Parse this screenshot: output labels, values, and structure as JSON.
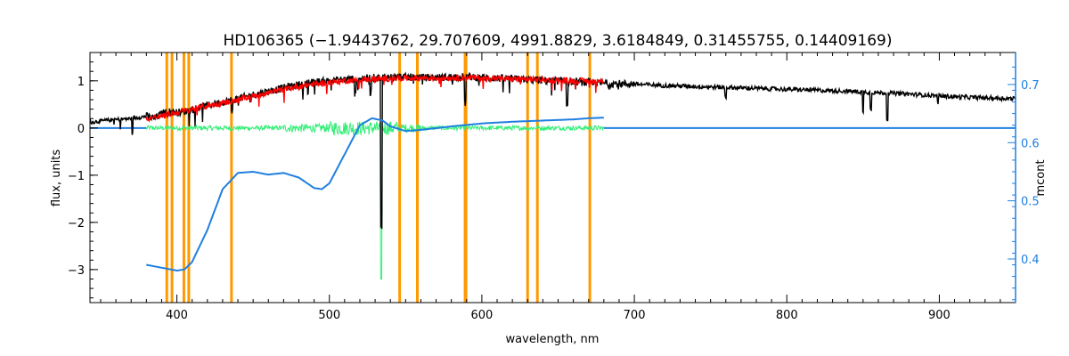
{
  "colors": {
    "frame": "#000000",
    "observed": "#000000",
    "model": "#ff0000",
    "residual": "#33ee77",
    "mcont": "#1f7fe0",
    "marker_lines": "#ff9900"
  },
  "chart_data": {
    "type": "line",
    "title": "HD106365    (−1.9443762, 29.707609, 4991.8829, 3.6184849, 0.31455755, 0.14409169)",
    "xlabel": "wavelength, nm",
    "ylabel": "flux, units",
    "y2label": "mcont",
    "xlim": [
      343,
      950
    ],
    "ylim": [
      -3.7,
      1.6
    ],
    "y2lim": [
      0.325,
      0.755
    ],
    "x_ticks": [
      400,
      500,
      600,
      700,
      800,
      900
    ],
    "y_ticks": [
      -3,
      -2,
      -1,
      0,
      1
    ],
    "y_tick_labels": [
      "−3",
      "−2",
      "−1",
      "0",
      "1"
    ],
    "y2_ticks": [
      0.4,
      0.5,
      0.6,
      0.7
    ],
    "marker_lines": [
      393.4,
      396.8,
      404.6,
      407.8,
      435.8,
      546.1,
      557.7,
      588.99,
      589.59,
      630.0,
      636.4,
      670.8
    ],
    "series": [
      {
        "type": "noisy-spectrum",
        "x": [
          343,
          350,
          360,
          370,
          380,
          385,
          390,
          395,
          400,
          405,
          410,
          420,
          430,
          440,
          450,
          460,
          470,
          480,
          490,
          500,
          510,
          520,
          530,
          540,
          550,
          560,
          570,
          580,
          590,
          600,
          620,
          640,
          660,
          680,
          700,
          720,
          740,
          760,
          780,
          800,
          820,
          840,
          860,
          880,
          900,
          920,
          940,
          950
        ],
        "y": [
          0.12,
          0.15,
          0.18,
          0.2,
          0.25,
          0.2,
          0.3,
          0.35,
          0.33,
          0.35,
          0.4,
          0.48,
          0.55,
          0.62,
          0.7,
          0.78,
          0.85,
          0.92,
          0.97,
          1.0,
          1.03,
          1.05,
          1.07,
          1.08,
          1.08,
          1.07,
          1.07,
          1.08,
          1.09,
          1.07,
          1.04,
          1.01,
          0.98,
          0.95,
          0.93,
          0.9,
          0.88,
          0.86,
          0.84,
          0.82,
          0.8,
          0.78,
          0.75,
          0.72,
          0.68,
          0.65,
          0.63,
          0.62
        ]
      },
      {
        "type": "noisy-spectrum",
        "x": [
          380,
          390,
          400,
          410,
          420,
          430,
          440,
          450,
          460,
          470,
          480,
          490,
          500,
          510,
          520,
          530,
          540,
          550,
          560,
          570,
          580,
          590,
          600,
          620,
          640,
          660,
          680
        ],
        "y": [
          0.2,
          0.25,
          0.33,
          0.4,
          0.47,
          0.53,
          0.6,
          0.68,
          0.75,
          0.82,
          0.88,
          0.93,
          0.97,
          1.0,
          1.02,
          1.04,
          1.05,
          1.06,
          1.06,
          1.06,
          1.06,
          1.07,
          1.06,
          1.04,
          1.02,
          1.0,
          0.99
        ]
      },
      {
        "type": "noisy-residual",
        "x": [
          380,
          400,
          450,
          500,
          520,
          530,
          540,
          560,
          600,
          640,
          680
        ],
        "y": [
          0.0,
          0.0,
          0.0,
          0.0,
          0.0,
          0.0,
          0.0,
          0.0,
          0.0,
          0.0,
          0.0
        ]
      },
      {
        "type": "smooth",
        "axis": "right",
        "x": [
          380,
          390,
          400,
          405,
          410,
          420,
          430,
          440,
          450,
          460,
          470,
          480,
          490,
          495,
          500,
          510,
          520,
          528,
          535,
          540,
          550,
          560,
          580,
          600,
          620,
          640,
          660,
          670,
          680
        ],
        "y": [
          0.39,
          0.385,
          0.38,
          0.382,
          0.395,
          0.45,
          0.52,
          0.548,
          0.55,
          0.545,
          0.548,
          0.54,
          0.522,
          0.52,
          0.53,
          0.58,
          0.63,
          0.642,
          0.638,
          0.628,
          0.62,
          0.622,
          0.628,
          0.633,
          0.636,
          0.638,
          0.64,
          0.642,
          0.643
        ]
      },
      {
        "type": "flat",
        "x": [
          680,
          950
        ],
        "y": [
          0.0,
          0.0
        ]
      }
    ]
  }
}
